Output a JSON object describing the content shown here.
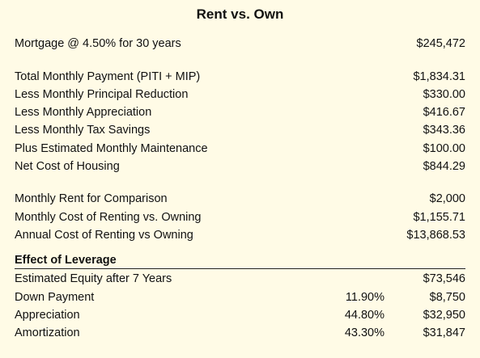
{
  "title": "Rent vs. Own",
  "mortgage": {
    "label": "Mortgage @ 4.50% for 30 years",
    "value": "$245,472"
  },
  "payment_rows": [
    {
      "label": "Total Monthly Payment (PITI + MIP)",
      "value": "$1,834.31"
    },
    {
      "label": "Less Monthly Principal Reduction",
      "value": "$330.00"
    },
    {
      "label": "Less Monthly Appreciation",
      "value": "$416.67"
    },
    {
      "label": "Less Monthly Tax Savings",
      "value": "$343.36"
    },
    {
      "label": "Plus Estimated Monthly Maintenance",
      "value": "$100.00"
    },
    {
      "label": "Net Cost of Housing",
      "value": "$844.29"
    }
  ],
  "rent_rows": [
    {
      "label": "Monthly Rent for Comparison",
      "value": "$2,000"
    },
    {
      "label": "Monthly Cost of Renting vs. Owning",
      "value": "$1,155.71"
    },
    {
      "label": "Annual Cost of Renting vs Owning",
      "value": "$13,868.53"
    }
  ],
  "leverage": {
    "heading": "Effect of Leverage",
    "rows": [
      {
        "label": "Estimated Equity after 7 Years",
        "pct": "",
        "value": "$73,546"
      },
      {
        "label": "Down Payment",
        "pct": "11.90%",
        "value": "$8,750"
      },
      {
        "label": "Appreciation",
        "pct": "44.80%",
        "value": "$32,950"
      },
      {
        "label": "Amortization",
        "pct": "43.30%",
        "value": "$31,847"
      }
    ]
  }
}
